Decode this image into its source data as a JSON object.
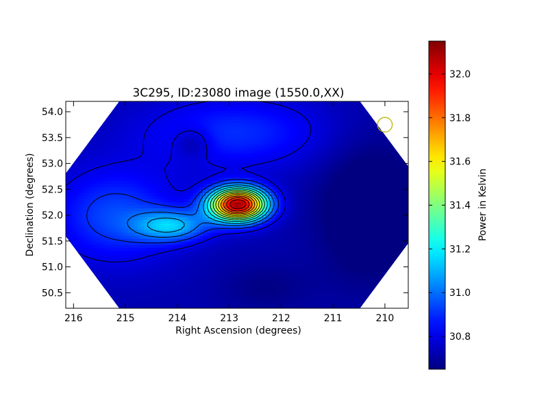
{
  "chart_data": {
    "type": "heatmap",
    "title": "3C295, ID:23080 image (1550.0,XX)",
    "xlabel": "Right Ascension (degrees)",
    "ylabel": "Declination (degrees)",
    "xlim": [
      216.15,
      209.55
    ],
    "ylim": [
      50.2,
      54.2
    ],
    "x_ticks": [
      216,
      215,
      214,
      213,
      212,
      211,
      210
    ],
    "y_ticks": [
      50.5,
      51.0,
      51.5,
      52.0,
      52.5,
      53.0,
      53.5,
      54.0
    ],
    "x_tick_labels": [
      "216",
      "215",
      "214",
      "213",
      "212",
      "211",
      "210"
    ],
    "y_tick_labels": [
      "50.5",
      "51.0",
      "51.5",
      "52.0",
      "52.5",
      "53.0",
      "53.5",
      "54.0"
    ],
    "colorbar": {
      "label": "Power in Kelvin",
      "range": [
        30.65,
        32.15
      ],
      "ticks": [
        30.8,
        31.0,
        31.2,
        31.4,
        31.6,
        31.8,
        32.0
      ],
      "tick_labels": [
        "30.8",
        "31.0",
        "31.2",
        "31.4",
        "31.6",
        "31.8",
        "32.0"
      ],
      "colormap": "jet"
    },
    "peak": {
      "ra": 212.83,
      "dec": 52.21,
      "value": 32.15
    },
    "secondary_peak": {
      "ra": 214.1,
      "dec": 51.8,
      "value": 31.2
    },
    "minimum_region": {
      "ra": 210.3,
      "dec": 52.2,
      "value": 30.65
    },
    "beam_circle": {
      "ra": 210.0,
      "dec": 53.75,
      "radius_deg": 0.38,
      "color": "#b5b800"
    },
    "contours": "black lines",
    "grid": false
  },
  "colors": {
    "contour": "#000000",
    "beam": "#b5b800",
    "axes": "#000000"
  }
}
